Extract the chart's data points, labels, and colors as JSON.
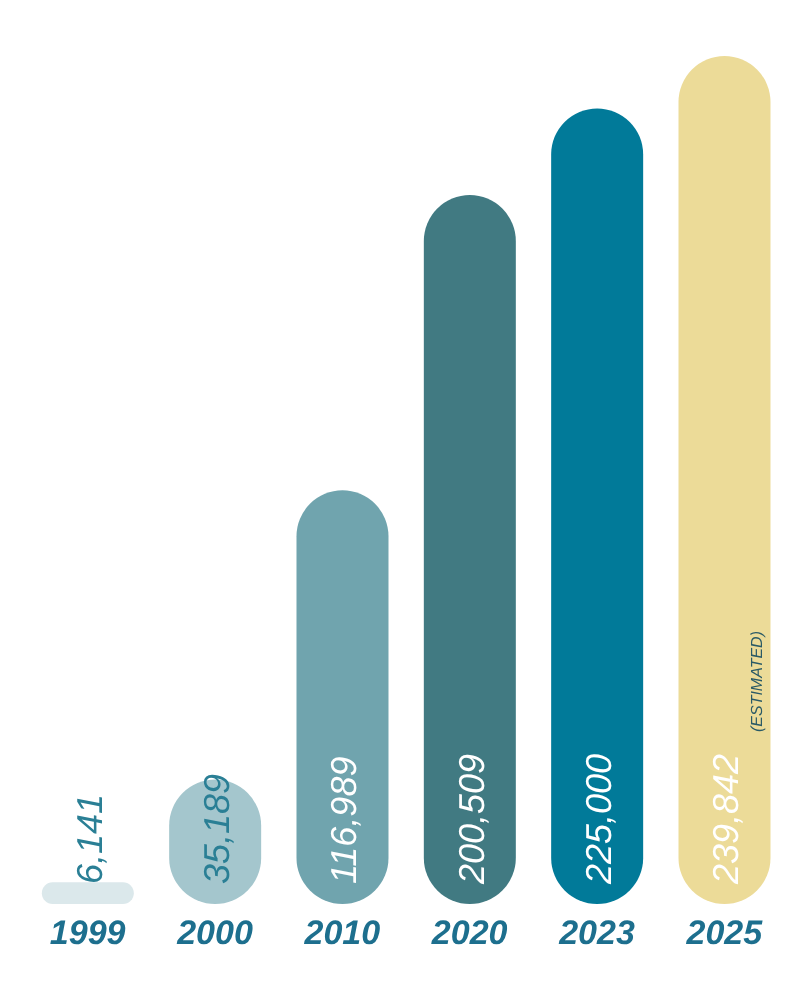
{
  "chart_data": {
    "type": "bar",
    "categories": [
      "1999",
      "2000",
      "2010",
      "2020",
      "2023",
      "2025"
    ],
    "values": [
      6141,
      35189,
      116989,
      200509,
      225000,
      239842
    ],
    "colors": [
      "#dbe8eb",
      "#a4c6cd",
      "#70a4ae",
      "#417a82",
      "#017a99",
      "#ecdb98"
    ],
    "value_labels": [
      "6,141",
      "35,189",
      "116,989",
      "200,509",
      "225,000",
      "239,842"
    ],
    "annotations": [
      "(ESTIMATED)"
    ]
  }
}
